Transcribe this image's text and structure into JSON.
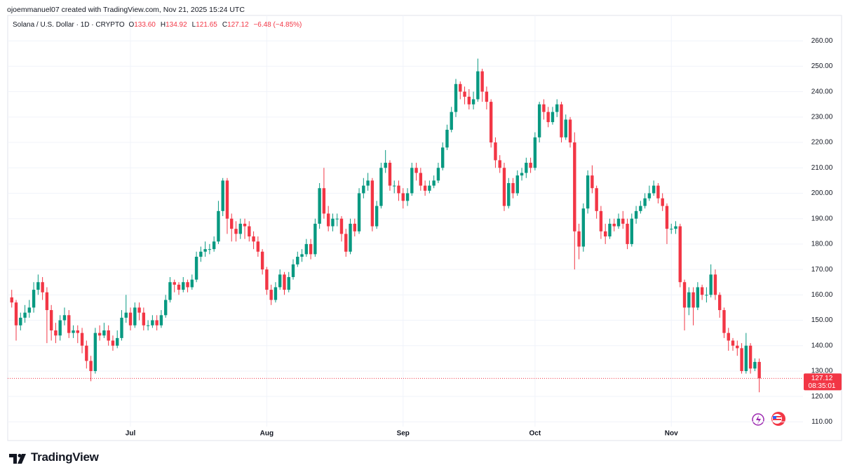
{
  "header": "ojoemmanuel07 created with TradingView.com, Nov 21, 2025 15:24 UTC",
  "logo": "TradingView",
  "legend": {
    "symbol": "Solana / U.S. Dollar · 1D · CRYPTO",
    "items": [
      {
        "key": "O",
        "value": "133.60"
      },
      {
        "key": "H",
        "value": "134.92"
      },
      {
        "key": "L",
        "value": "121.65"
      },
      {
        "key": "C",
        "value": "127.12"
      }
    ],
    "change": "−6.48 (−4.85%)"
  },
  "chart_data": {
    "type": "candlestick",
    "categories": [
      null,
      null,
      null,
      null,
      null,
      null,
      null,
      null,
      null,
      null,
      null,
      null,
      null,
      null,
      null,
      null,
      null,
      null,
      null,
      null,
      null,
      null,
      null,
      null,
      null,
      null,
      null,
      "Jul",
      null,
      null,
      null,
      null,
      null,
      null,
      null,
      null,
      null,
      null,
      null,
      null,
      null,
      null,
      null,
      null,
      null,
      null,
      null,
      null,
      null,
      null,
      null,
      null,
      null,
      null,
      null,
      null,
      null,
      null,
      "Aug",
      null,
      null,
      null,
      null,
      null,
      null,
      null,
      null,
      null,
      null,
      null,
      null,
      null,
      null,
      null,
      null,
      null,
      null,
      null,
      null,
      null,
      null,
      null,
      null,
      null,
      null,
      null,
      null,
      null,
      null,
      "Sep",
      null,
      null,
      null,
      null,
      null,
      null,
      null,
      null,
      null,
      null,
      null,
      null,
      null,
      null,
      null,
      null,
      null,
      null,
      null,
      null,
      null,
      null,
      null,
      null,
      null,
      null,
      null,
      null,
      null,
      "Oct",
      null,
      null,
      null,
      null,
      null,
      null,
      null,
      null,
      null,
      null,
      null,
      null,
      null,
      null,
      null,
      null,
      null,
      null,
      null,
      null,
      null,
      null,
      null,
      null,
      null,
      null,
      null,
      null,
      null,
      null,
      "Nov",
      null,
      null,
      null,
      null,
      null,
      null,
      null,
      null,
      null,
      null,
      null,
      null,
      null,
      null,
      null,
      null,
      null,
      null,
      null,
      null
    ],
    "open": [
      159,
      157,
      148,
      151,
      153,
      155,
      162,
      165,
      161,
      154,
      146,
      144,
      150,
      152,
      145,
      146,
      145,
      140,
      134,
      130,
      145,
      144,
      146,
      142,
      140,
      143,
      151,
      153,
      148,
      155,
      153,
      148,
      148,
      150,
      148,
      152,
      158,
      165,
      164,
      162,
      165,
      163,
      166,
      175,
      177,
      178,
      178,
      181,
      193,
      205,
      190,
      186,
      184,
      188,
      187,
      183,
      181,
      177,
      170,
      162,
      158,
      163,
      168,
      162,
      167,
      172,
      175,
      176,
      180,
      176,
      188,
      202,
      192,
      187,
      190,
      190,
      184,
      177,
      188,
      185,
      200,
      203,
      205,
      187,
      195,
      210,
      212,
      203,
      203,
      200,
      197,
      200,
      210,
      208,
      203,
      201,
      203,
      205,
      210,
      218,
      225,
      232,
      243,
      240,
      238,
      235,
      237,
      248,
      240,
      236,
      220,
      213,
      210,
      195,
      204,
      200,
      207,
      208,
      212,
      210,
      222,
      235,
      232,
      228,
      232,
      235,
      222,
      229,
      220,
      185,
      179,
      194,
      207,
      202,
      193,
      185,
      183,
      188,
      187,
      190,
      188,
      180,
      190,
      193,
      195,
      198,
      200,
      203,
      198,
      195,
      186,
      186,
      187,
      165,
      155,
      161,
      155,
      163,
      160,
      160,
      168,
      160,
      154,
      145,
      142,
      140,
      139,
      130,
      140,
      131,
      133.6
    ],
    "high": [
      162,
      158,
      153,
      156,
      158,
      165,
      168,
      167,
      163,
      156,
      149,
      152,
      155,
      154,
      148,
      148,
      147,
      142,
      136,
      147,
      148,
      149,
      148,
      144,
      146,
      154,
      160,
      155,
      157,
      157,
      155,
      150,
      152,
      152,
      154,
      160,
      167,
      166,
      165,
      167,
      166,
      168,
      177,
      179,
      181,
      180,
      183,
      197,
      206,
      206,
      192,
      189,
      190,
      190,
      189,
      185,
      183,
      178,
      171,
      164,
      165,
      170,
      169,
      169,
      174,
      177,
      178,
      182,
      182,
      190,
      204,
      210,
      195,
      192,
      192,
      191,
      186,
      190,
      190,
      202,
      206,
      208,
      206,
      197,
      212,
      217,
      213,
      205,
      205,
      202,
      202,
      212,
      212,
      210,
      205,
      205,
      207,
      212,
      220,
      227,
      234,
      245,
      244,
      242,
      241,
      240,
      253,
      249,
      242,
      237,
      222,
      215,
      212,
      206,
      206,
      209,
      210,
      214,
      214,
      224,
      236,
      237,
      234,
      234,
      237,
      236,
      231,
      230,
      224,
      188,
      196,
      209,
      211,
      203,
      195,
      188,
      190,
      190,
      192,
      193,
      190,
      192,
      195,
      197,
      200,
      203,
      205,
      204,
      200,
      196,
      188,
      189,
      188,
      166,
      163,
      163,
      165,
      164,
      163,
      172,
      170,
      161,
      155,
      147,
      143,
      142,
      141,
      145,
      141,
      135,
      134.92
    ],
    "low": [
      155,
      142,
      146,
      149,
      151,
      153,
      160,
      158,
      141,
      142,
      141,
      142,
      148,
      143,
      143,
      141,
      137,
      131,
      126,
      129,
      142,
      143,
      140,
      138,
      139,
      142,
      149,
      146,
      147,
      150,
      146,
      146,
      147,
      146,
      147,
      151,
      157,
      161,
      160,
      161,
      161,
      162,
      165,
      173,
      175,
      176,
      177,
      180,
      191,
      184,
      181,
      181,
      182,
      182,
      181,
      178,
      175,
      168,
      160,
      156,
      157,
      162,
      160,
      161,
      166,
      171,
      173,
      175,
      174,
      175,
      186,
      190,
      185,
      185,
      187,
      181,
      175,
      176,
      183,
      184,
      198,
      201,
      185,
      186,
      194,
      208,
      201,
      200,
      197,
      194,
      195,
      199,
      205,
      201,
      199,
      200,
      202,
      204,
      209,
      217,
      224,
      230,
      237,
      235,
      233,
      233,
      236,
      236,
      233,
      218,
      210,
      208,
      193,
      194,
      198,
      199,
      205,
      206,
      208,
      209,
      220,
      229,
      226,
      227,
      230,
      220,
      221,
      218,
      170,
      174,
      177,
      192,
      200,
      190,
      182,
      180,
      182,
      185,
      186,
      186,
      178,
      179,
      188,
      192,
      194,
      197,
      199,
      196,
      193,
      180,
      184,
      184,
      163,
      146,
      152,
      148,
      154,
      158,
      157,
      159,
      158,
      151,
      143,
      138,
      138,
      136,
      129,
      129,
      129,
      130,
      121.65
    ],
    "close": [
      157,
      148,
      151,
      153,
      155,
      162,
      165,
      161,
      154,
      146,
      144,
      150,
      152,
      145,
      146,
      145,
      140,
      134,
      130,
      145,
      144,
      146,
      142,
      140,
      143,
      151,
      153,
      148,
      155,
      153,
      148,
      148,
      150,
      148,
      152,
      158,
      165,
      164,
      162,
      165,
      163,
      166,
      175,
      177,
      178,
      178,
      181,
      193,
      205,
      190,
      186,
      184,
      188,
      187,
      183,
      181,
      177,
      170,
      162,
      158,
      163,
      168,
      162,
      167,
      172,
      175,
      176,
      180,
      176,
      188,
      202,
      192,
      187,
      190,
      190,
      184,
      177,
      188,
      185,
      200,
      203,
      205,
      187,
      195,
      210,
      212,
      203,
      203,
      200,
      197,
      200,
      210,
      208,
      203,
      201,
      203,
      205,
      210,
      218,
      225,
      232,
      243,
      240,
      238,
      235,
      237,
      248,
      240,
      236,
      220,
      213,
      210,
      195,
      204,
      200,
      207,
      208,
      212,
      210,
      222,
      235,
      232,
      228,
      232,
      235,
      222,
      229,
      220,
      185,
      179,
      194,
      207,
      202,
      193,
      185,
      183,
      188,
      187,
      190,
      188,
      180,
      190,
      193,
      195,
      198,
      200,
      203,
      198,
      195,
      186,
      186,
      187,
      165,
      155,
      161,
      155,
      163,
      160,
      160,
      168,
      160,
      154,
      145,
      142,
      140,
      139,
      130,
      140,
      131,
      133.6,
      127.12
    ],
    "up_color": "#089981",
    "down_color": "#f23645",
    "ylim": [
      109,
      270
    ],
    "yticks": [
      {
        "value": 110,
        "label": "110.00"
      },
      {
        "value": 120,
        "label": "120.00"
      },
      {
        "value": 130,
        "label": "130.00"
      },
      {
        "value": 140,
        "label": "140.00"
      },
      {
        "value": 150,
        "label": "150.00"
      },
      {
        "value": 160,
        "label": "160.00"
      },
      {
        "value": 170,
        "label": "170.00"
      },
      {
        "value": 180,
        "label": "180.00"
      },
      {
        "value": 190,
        "label": "190.00"
      },
      {
        "value": 200,
        "label": "200.00"
      },
      {
        "value": 210,
        "label": "210.00"
      },
      {
        "value": 220,
        "label": "220.00"
      },
      {
        "value": 230,
        "label": "230.00"
      },
      {
        "value": 240,
        "label": "240.00"
      },
      {
        "value": 250,
        "label": "250.00"
      },
      {
        "value": 260,
        "label": "260.00"
      }
    ],
    "grid": true,
    "last_price": 127.12,
    "countdown": "08:35:01"
  }
}
